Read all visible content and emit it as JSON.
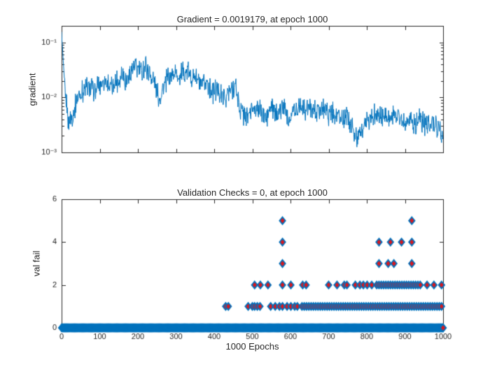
{
  "figure": {
    "background": "#ffffff",
    "axes_color": "#262626",
    "text_color": "#262626"
  },
  "chart_data": [
    {
      "type": "line",
      "title": "Gradient = 0.0019179, at epoch 1000",
      "ylabel": "gradient",
      "yscale": "log",
      "xlim": [
        0,
        1000
      ],
      "ylim": [
        0.001,
        0.2
      ],
      "ytick_values": [
        0.1,
        0.01,
        0.001
      ],
      "ytick_labels": [
        "10⁻¹",
        "10⁻²",
        "10⁻³"
      ],
      "xticks": [
        0,
        100,
        200,
        300,
        400,
        500,
        600,
        700,
        800,
        900,
        1000
      ],
      "show_xtick_labels": false,
      "line_color": "#0072BD",
      "final_value": 0.0019179,
      "noise_log10_amp": 0.32,
      "anchors": [
        [
          0,
          0.15
        ],
        [
          4,
          0.05
        ],
        [
          10,
          0.01
        ],
        [
          18,
          0.0038
        ],
        [
          28,
          0.0042
        ],
        [
          40,
          0.009
        ],
        [
          55,
          0.013
        ],
        [
          70,
          0.016
        ],
        [
          85,
          0.013
        ],
        [
          100,
          0.017
        ],
        [
          115,
          0.022
        ],
        [
          130,
          0.015
        ],
        [
          145,
          0.02
        ],
        [
          160,
          0.028
        ],
        [
          170,
          0.018
        ],
        [
          185,
          0.032
        ],
        [
          200,
          0.035
        ],
        [
          210,
          0.028
        ],
        [
          220,
          0.038
        ],
        [
          235,
          0.025
        ],
        [
          245,
          0.018
        ],
        [
          255,
          0.01
        ],
        [
          265,
          0.014
        ],
        [
          280,
          0.022
        ],
        [
          295,
          0.028
        ],
        [
          310,
          0.024
        ],
        [
          325,
          0.03
        ],
        [
          340,
          0.022
        ],
        [
          350,
          0.026
        ],
        [
          365,
          0.015
        ],
        [
          380,
          0.019
        ],
        [
          395,
          0.012
        ],
        [
          410,
          0.014
        ],
        [
          425,
          0.009
        ],
        [
          440,
          0.012
        ],
        [
          455,
          0.018
        ],
        [
          465,
          0.007
        ],
        [
          475,
          0.005
        ],
        [
          490,
          0.0045
        ],
        [
          505,
          0.007
        ],
        [
          520,
          0.0055
        ],
        [
          535,
          0.004
        ],
        [
          550,
          0.0065
        ],
        [
          565,
          0.005
        ],
        [
          580,
          0.007
        ],
        [
          595,
          0.0045
        ],
        [
          610,
          0.0055
        ],
        [
          625,
          0.0075
        ],
        [
          640,
          0.006
        ],
        [
          655,
          0.007
        ],
        [
          670,
          0.0055
        ],
        [
          685,
          0.0065
        ],
        [
          700,
          0.005
        ],
        [
          715,
          0.0055
        ],
        [
          730,
          0.004
        ],
        [
          745,
          0.0045
        ],
        [
          760,
          0.003
        ],
        [
          775,
          0.0016
        ],
        [
          790,
          0.0028
        ],
        [
          805,
          0.0042
        ],
        [
          820,
          0.005
        ],
        [
          835,
          0.0045
        ],
        [
          850,
          0.005
        ],
        [
          865,
          0.0042
        ],
        [
          880,
          0.0048
        ],
        [
          895,
          0.0038
        ],
        [
          910,
          0.0042
        ],
        [
          925,
          0.0032
        ],
        [
          940,
          0.0038
        ],
        [
          955,
          0.0032
        ],
        [
          970,
          0.0036
        ],
        [
          985,
          0.003
        ],
        [
          1000,
          0.0019179
        ]
      ]
    },
    {
      "type": "scatter",
      "title": "Validation Checks = 0, at epoch 1000",
      "ylabel": "val fail",
      "xlabel": "1000 Epochs",
      "xlim": [
        0,
        1000
      ],
      "ylim": [
        0,
        6
      ],
      "yticks": [
        0,
        2,
        4,
        6
      ],
      "xticks": [
        0,
        100,
        200,
        300,
        400,
        500,
        600,
        700,
        800,
        900,
        1000
      ],
      "marker": "diamond",
      "marker_edge_color": "#0072BD",
      "marker_face_color": "#D71920",
      "zero_baseline": {
        "from": 0,
        "to": 1000,
        "step": 2,
        "value": 0
      },
      "final_point": [
        1000,
        0
      ],
      "points": [
        [
          430,
          1
        ],
        [
          437,
          1
        ],
        [
          489,
          1
        ],
        [
          500,
          1
        ],
        [
          506,
          1
        ],
        [
          513,
          1
        ],
        [
          520,
          1
        ],
        [
          548,
          1
        ],
        [
          560,
          1
        ],
        [
          571,
          1
        ],
        [
          579,
          1
        ],
        [
          591,
          1
        ],
        [
          601,
          1
        ],
        [
          611,
          1
        ],
        [
          618,
          1
        ],
        [
          630,
          1
        ],
        [
          636,
          1
        ],
        [
          642,
          1
        ],
        [
          648,
          1
        ],
        [
          654,
          1
        ],
        [
          660,
          1
        ],
        [
          666,
          1
        ],
        [
          672,
          1
        ],
        [
          678,
          1
        ],
        [
          684,
          1
        ],
        [
          690,
          1
        ],
        [
          696,
          1
        ],
        [
          702,
          1
        ],
        [
          708,
          1
        ],
        [
          714,
          1
        ],
        [
          720,
          1
        ],
        [
          726,
          1
        ],
        [
          732,
          1
        ],
        [
          738,
          1
        ],
        [
          744,
          1
        ],
        [
          750,
          1
        ],
        [
          756,
          1
        ],
        [
          762,
          1
        ],
        [
          768,
          1
        ],
        [
          774,
          1
        ],
        [
          780,
          1
        ],
        [
          786,
          1
        ],
        [
          792,
          1
        ],
        [
          798,
          1
        ],
        [
          804,
          1
        ],
        [
          810,
          1
        ],
        [
          816,
          1
        ],
        [
          822,
          1
        ],
        [
          828,
          1
        ],
        [
          834,
          1
        ],
        [
          840,
          1
        ],
        [
          846,
          1
        ],
        [
          852,
          1
        ],
        [
          858,
          1
        ],
        [
          864,
          1
        ],
        [
          870,
          1
        ],
        [
          876,
          1
        ],
        [
          882,
          1
        ],
        [
          888,
          1
        ],
        [
          894,
          1
        ],
        [
          900,
          1
        ],
        [
          906,
          1
        ],
        [
          912,
          1
        ],
        [
          918,
          1
        ],
        [
          924,
          1
        ],
        [
          930,
          1
        ],
        [
          936,
          1
        ],
        [
          942,
          1
        ],
        [
          948,
          1
        ],
        [
          954,
          1
        ],
        [
          960,
          1
        ],
        [
          966,
          1
        ],
        [
          972,
          1
        ],
        [
          978,
          1
        ],
        [
          984,
          1
        ],
        [
          990,
          1
        ],
        [
          996,
          1
        ],
        [
          506,
          2
        ],
        [
          521,
          2
        ],
        [
          541,
          2
        ],
        [
          579,
          2
        ],
        [
          601,
          2
        ],
        [
          632,
          2
        ],
        [
          641,
          2
        ],
        [
          700,
          2
        ],
        [
          722,
          2
        ],
        [
          741,
          2
        ],
        [
          748,
          2
        ],
        [
          770,
          2
        ],
        [
          782,
          2
        ],
        [
          791,
          2
        ],
        [
          801,
          2
        ],
        [
          813,
          2
        ],
        [
          826,
          2
        ],
        [
          832,
          2
        ],
        [
          838,
          2
        ],
        [
          844,
          2
        ],
        [
          850,
          2
        ],
        [
          856,
          2
        ],
        [
          862,
          2
        ],
        [
          868,
          2
        ],
        [
          874,
          2
        ],
        [
          880,
          2
        ],
        [
          886,
          2
        ],
        [
          892,
          2
        ],
        [
          898,
          2
        ],
        [
          904,
          2
        ],
        [
          910,
          2
        ],
        [
          916,
          2
        ],
        [
          922,
          2
        ],
        [
          928,
          2
        ],
        [
          934,
          2
        ],
        [
          940,
          2
        ],
        [
          958,
          2
        ],
        [
          976,
          2
        ],
        [
          996,
          2
        ],
        [
          579,
          3
        ],
        [
          832,
          3
        ],
        [
          856,
          3
        ],
        [
          871,
          3
        ],
        [
          918,
          3
        ],
        [
          579,
          4
        ],
        [
          832,
          4
        ],
        [
          862,
          4
        ],
        [
          891,
          4
        ],
        [
          918,
          4
        ],
        [
          579,
          5
        ],
        [
          918,
          5
        ]
      ]
    }
  ]
}
